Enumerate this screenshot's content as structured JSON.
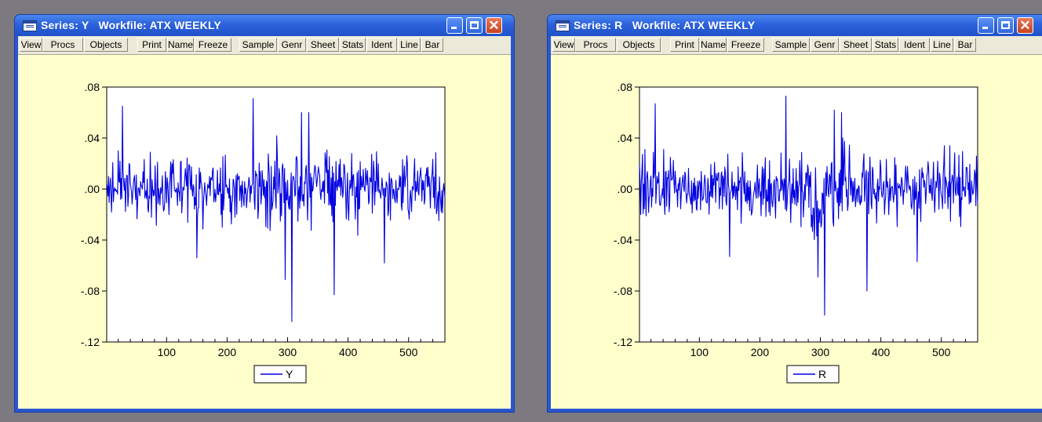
{
  "buttons": [
    "View",
    "Procs",
    "Objects",
    "Print",
    "Name",
    "Freeze",
    "Sample",
    "Genr",
    "Sheet",
    "Stats",
    "Ident",
    "Line",
    "Bar"
  ],
  "windows": [
    {
      "title": "Series: Y   Workfile: ATX WEEKLY",
      "controls": {
        "minimize_icon": "minimize-icon",
        "maximize_icon": "maximize-icon",
        "close_icon": "close-icon"
      },
      "chart": {
        "yticks": [
          ".08",
          ".04",
          ".00",
          "-.04",
          "-.08",
          "-.12"
        ],
        "xticks": [
          "100",
          "200",
          "300",
          "400",
          "500"
        ],
        "legend": "Y"
      }
    },
    {
      "title": "Series: R   Workfile: ATX WEEKLY",
      "controls": {
        "minimize_icon": "minimize-icon",
        "maximize_icon": "maximize-icon",
        "close_icon": "close-icon"
      },
      "chart": {
        "yticks": [
          ".08",
          ".04",
          ".00",
          "-.04",
          "-.08",
          "-.12"
        ],
        "xticks": [
          "100",
          "200",
          "300",
          "400",
          "500"
        ],
        "legend": "R"
      }
    }
  ],
  "chart_data": [
    {
      "type": "line",
      "series": [
        {
          "name": "Y",
          "color": "#0000e0",
          "x_range": [
            1,
            560
          ]
        }
      ],
      "xlim": [
        1,
        560
      ],
      "ylim": [
        -0.12,
        0.08
      ],
      "x_ticks": [
        100,
        200,
        300,
        400,
        500
      ],
      "y_ticks": [
        0.08,
        0.04,
        0.0,
        -0.04,
        -0.08,
        -0.12
      ],
      "grid": false,
      "legend_position": "bottom-center",
      "notable_points": [
        {
          "x": 243,
          "y": 0.071
        },
        {
          "x": 307,
          "y": -0.104
        },
        {
          "x": 377,
          "y": -0.083
        },
        {
          "x": 460,
          "y": -0.058
        },
        {
          "x": 27,
          "y": 0.065
        },
        {
          "x": 150,
          "y": -0.054
        },
        {
          "x": 296,
          "y": -0.071
        },
        {
          "x": 323,
          "y": 0.06
        },
        {
          "x": 335,
          "y": 0.06
        }
      ]
    },
    {
      "type": "line",
      "series": [
        {
          "name": "R",
          "color": "#0000e0",
          "x_range": [
            1,
            560
          ]
        }
      ],
      "xlim": [
        1,
        560
      ],
      "ylim": [
        -0.12,
        0.08
      ],
      "x_ticks": [
        100,
        200,
        300,
        400,
        500
      ],
      "y_ticks": [
        0.08,
        0.04,
        0.0,
        -0.04,
        -0.08,
        -0.12
      ],
      "grid": false,
      "legend_position": "bottom-center",
      "notable_points": [
        {
          "x": 243,
          "y": 0.073
        },
        {
          "x": 307,
          "y": -0.099
        },
        {
          "x": 377,
          "y": -0.08
        },
        {
          "x": 460,
          "y": -0.057
        },
        {
          "x": 27,
          "y": 0.067
        },
        {
          "x": 150,
          "y": -0.053
        },
        {
          "x": 296,
          "y": -0.069
        },
        {
          "x": 323,
          "y": 0.062
        },
        {
          "x": 335,
          "y": 0.06
        }
      ]
    }
  ]
}
